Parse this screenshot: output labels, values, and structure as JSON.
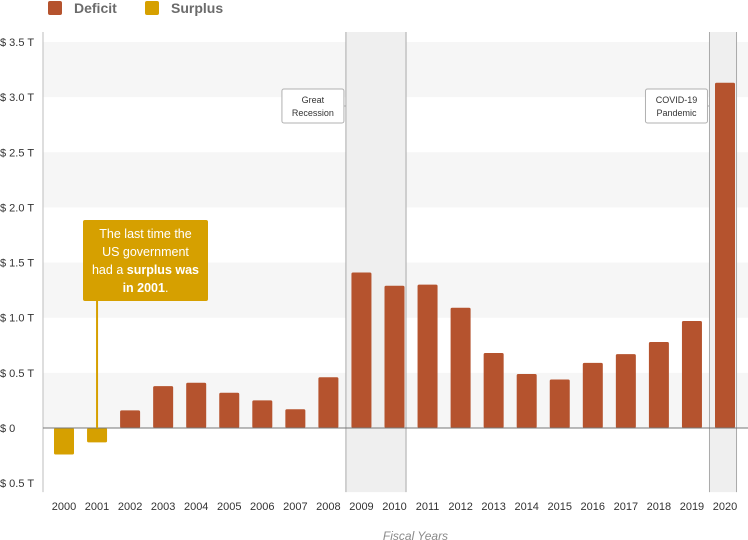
{
  "legend": [
    {
      "label": "Deficit",
      "color": "#b5532e"
    },
    {
      "label": "Surplus",
      "color": "#d6a000"
    }
  ],
  "chart_data": {
    "type": "bar",
    "categories": [
      "2000",
      "2001",
      "2002",
      "2003",
      "2004",
      "2005",
      "2006",
      "2007",
      "2008",
      "2009",
      "2010",
      "2011",
      "2012",
      "2013",
      "2014",
      "2015",
      "2016",
      "2017",
      "2018",
      "2019",
      "2020"
    ],
    "values": [
      -0.24,
      -0.13,
      0.16,
      0.38,
      0.41,
      0.32,
      0.25,
      0.17,
      0.46,
      1.41,
      1.29,
      1.3,
      1.09,
      0.68,
      0.49,
      0.44,
      0.59,
      0.67,
      0.78,
      0.97,
      3.13
    ],
    "series": [
      {
        "name": "Deficit",
        "color": "#b5532e"
      },
      {
        "name": "Surplus",
        "color": "#d6a000"
      }
    ],
    "ylim": [
      -0.5,
      3.5
    ],
    "yticks": [
      3.5,
      3.0,
      2.5,
      2.0,
      1.5,
      1.0,
      0.5,
      0,
      -0.5
    ],
    "ytick_labels": [
      "$ 3.5 T",
      "$ 3.0 T",
      "$ 2.5 T",
      "$ 2.0 T",
      "$ 1.5 T",
      "$ 1.0 T",
      "$ 0.5 T",
      "$ 0",
      "$ 0.5 T"
    ],
    "xlabel": "Fiscal Years",
    "ylabel": "",
    "grid": "banded",
    "legend_position": "top-left",
    "shaded_regions": [
      {
        "label_lines": [
          "Great",
          "Recession"
        ],
        "from": "2009",
        "to": "2010"
      },
      {
        "label_lines": [
          "COVID-19",
          "Pandemic"
        ],
        "from": "2020",
        "to": "2020"
      }
    ],
    "callout": {
      "year": "2001",
      "lines": [
        [
          {
            "text": "The last time the",
            "bold": false
          }
        ],
        [
          {
            "text": "US government",
            "bold": false
          }
        ],
        [
          {
            "text": "had a ",
            "bold": false
          },
          {
            "text": "surplus was",
            "bold": true
          }
        ],
        [
          {
            "text": "in 2001",
            "bold": true
          },
          {
            "text": ".",
            "bold": false
          }
        ]
      ],
      "color": "#d6a000"
    }
  }
}
